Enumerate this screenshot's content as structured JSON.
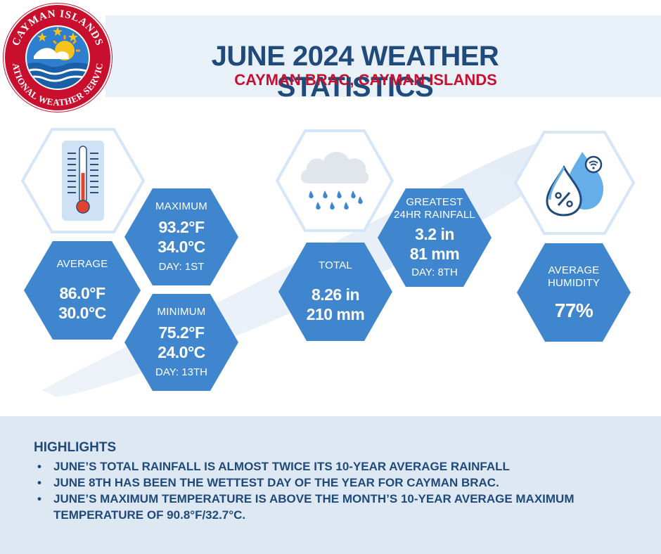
{
  "header": {
    "title": "JUNE 2024 WEATHER STATISTICS",
    "subtitle": "CAYMAN BRAC, CAYMAN ISLANDS"
  },
  "logo": {
    "top_text": "CAYMAN ISLANDS",
    "bottom_text": "NATIONAL WEATHER SERVICE"
  },
  "temperature": {
    "icon": "thermometer-icon",
    "average": {
      "label": "AVERAGE",
      "fahrenheit": "86.0°F",
      "celsius": "30.0°C"
    },
    "maximum": {
      "label": "MAXIMUM",
      "fahrenheit": "93.2°F",
      "celsius": "34.0°C",
      "day": "DAY: 1ST"
    },
    "minimum": {
      "label": "MINIMUM",
      "fahrenheit": "75.2°F",
      "celsius": "24.0°C",
      "day": "DAY: 13TH"
    }
  },
  "rainfall": {
    "icon": "rain-cloud-icon",
    "total": {
      "label": "TOTAL",
      "inches": "8.26 in",
      "mm": "210 mm"
    },
    "greatest": {
      "label_line1": "GREATEST",
      "label_line2": "24HR RAINFALL",
      "inches": "3.2 in",
      "mm": "81 mm",
      "day": "DAY: 8TH"
    }
  },
  "humidity": {
    "icon": "humidity-drops-icon",
    "label_line1": "AVERAGE",
    "label_line2": "HUMIDITY",
    "value": "77%"
  },
  "highlights": {
    "title": "HIGHLIGHTS",
    "items": [
      "JUNE’S TOTAL RAINFALL IS ALMOST TWICE ITS 10-YEAR AVERAGE RAINFALL",
      "JUNE 8TH HAS BEEN THE WETTEST DAY OF THE YEAR FOR CAYMAN BRAC.",
      "JUNE’S MAXIMUM TEMPERATURE IS ABOVE THE MONTH’S 10-YEAR AVERAGE MAXIMUM TEMPERATURE OF 90.8°F/32.7°C."
    ]
  },
  "colors": {
    "title_blue": "#1f4a7a",
    "subtitle_red": "#c8102e",
    "hex_blue": "#3f86cf",
    "header_band": "#e8f0f8"
  }
}
